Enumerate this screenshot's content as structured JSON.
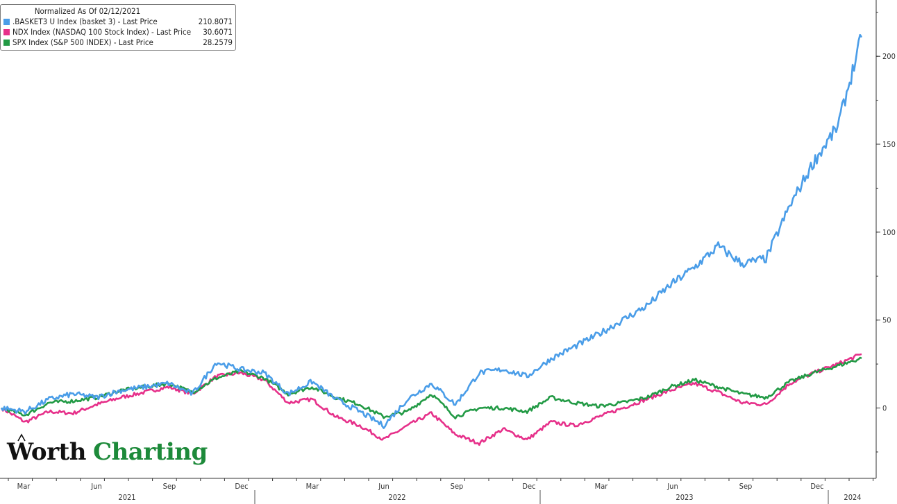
{
  "legend": {
    "title": "Normalized As Of 02/12/2021",
    "items": [
      {
        "label": ".BASKET3 U Index (basket 3) - Last Price",
        "value": "210.8071",
        "color": "#4a9de8"
      },
      {
        "label": "NDX Index (NASDAQ 100 Stock Index) - Last Price",
        "value": "30.6071",
        "color": "#e6308a"
      },
      {
        "label": "SPX Index (S&P 500 INDEX) - Last Price",
        "value": "28.2579",
        "color": "#229a45"
      }
    ]
  },
  "brand": {
    "word1": "Worth",
    "word2": "Charting"
  },
  "chart_data": {
    "type": "line",
    "y_ticks": [
      0,
      50,
      100,
      150,
      200
    ],
    "ylim": [
      -40,
      232
    ],
    "x_month_labels": [
      "Mar",
      "Jun",
      "Sep",
      "Dec",
      "Mar",
      "Jun",
      "Sep",
      "Dec",
      "Mar",
      "Jun",
      "Sep",
      "Dec"
    ],
    "x_year_labels": [
      "2021",
      "2022",
      "2023",
      "2024"
    ],
    "x": [
      "2021-02",
      "2021-03",
      "2021-04",
      "2021-05",
      "2021-06",
      "2021-07",
      "2021-08",
      "2021-09",
      "2021-10",
      "2021-11",
      "2021-12",
      "2022-01",
      "2022-02",
      "2022-03",
      "2022-04",
      "2022-05",
      "2022-06",
      "2022-07",
      "2022-08",
      "2022-09",
      "2022-10",
      "2022-11",
      "2022-12",
      "2023-01",
      "2023-02",
      "2023-03",
      "2023-04",
      "2023-05",
      "2023-06",
      "2023-07",
      "2023-08",
      "2023-09",
      "2023-10",
      "2023-11",
      "2023-12",
      "2024-01",
      "2024-02"
    ],
    "series": [
      {
        "name": ".BASKET3 U Index (basket 3) - Last Price",
        "color": "#4a9de8",
        "values": [
          0,
          -2,
          5,
          8,
          6,
          10,
          12,
          14,
          8,
          26,
          22,
          20,
          8,
          15,
          5,
          -2,
          -10,
          5,
          14,
          2,
          20,
          22,
          18,
          28,
          35,
          42,
          50,
          58,
          70,
          80,
          92,
          82,
          85,
          115,
          140,
          160,
          210.8
        ]
      },
      {
        "name": "NDX Index (NASDAQ 100 Stock Index) - Last Price",
        "color": "#e6308a",
        "values": [
          0,
          -8,
          -2,
          -3,
          2,
          6,
          9,
          12,
          8,
          18,
          20,
          16,
          3,
          5,
          -5,
          -10,
          -18,
          -10,
          -3,
          -15,
          -20,
          -12,
          -18,
          -8,
          -10,
          -5,
          0,
          5,
          10,
          14,
          9,
          3,
          2,
          14,
          20,
          25,
          30.6
        ]
      },
      {
        "name": "SPX Index (S&P 500 INDEX) - Last Price",
        "color": "#229a45",
        "values": [
          0,
          -4,
          3,
          4,
          6,
          10,
          12,
          14,
          9,
          17,
          21,
          17,
          8,
          12,
          6,
          2,
          -5,
          -2,
          8,
          -5,
          0,
          0,
          -2,
          6,
          3,
          1,
          3,
          6,
          12,
          16,
          12,
          8,
          6,
          15,
          20,
          24,
          28.3
        ]
      }
    ]
  }
}
